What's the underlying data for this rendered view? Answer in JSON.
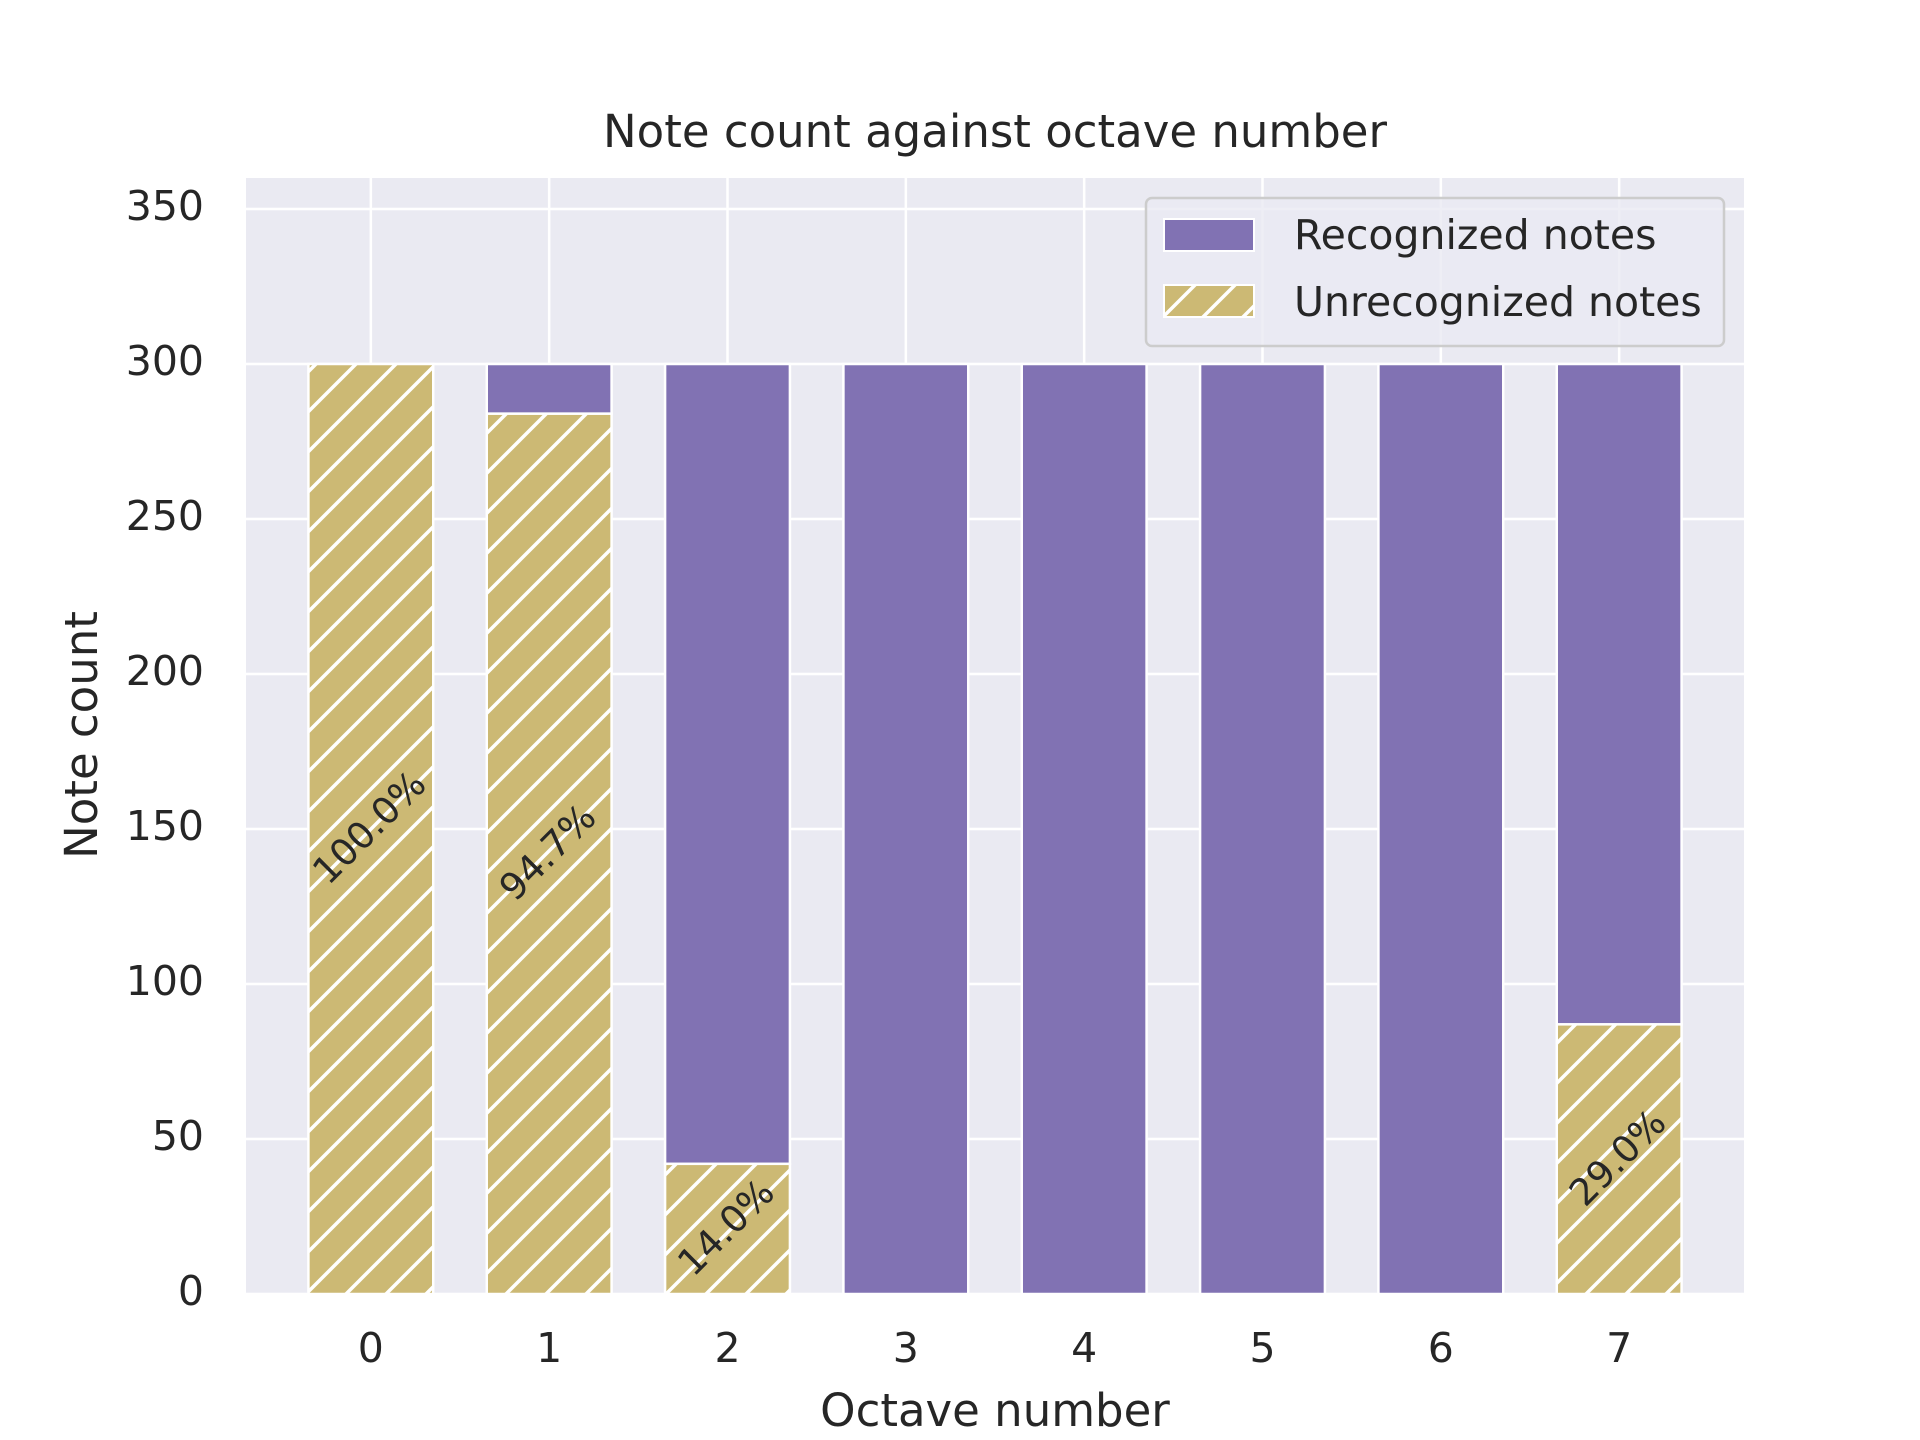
{
  "chart_data": {
    "type": "bar",
    "stacked": true,
    "title": "Note count against octave number",
    "xlabel": "Octave number",
    "ylabel": "Note count",
    "categories": [
      "0",
      "1",
      "2",
      "3",
      "4",
      "5",
      "6",
      "7"
    ],
    "ylim": [
      0,
      360
    ],
    "yticks": [
      0,
      50,
      100,
      150,
      200,
      250,
      300,
      350
    ],
    "grid": true,
    "legend_position": "top-right",
    "series": [
      {
        "name": "Unrecognized notes",
        "values": [
          300,
          284,
          42,
          0,
          0,
          0,
          0,
          87
        ],
        "color": "#ccb974",
        "hatch": "/"
      },
      {
        "name": "Recognized notes",
        "values": [
          0,
          16,
          258,
          300,
          300,
          300,
          300,
          213
        ],
        "color": "#8172b3"
      }
    ],
    "annotations": [
      "100.0%",
      "94.7%",
      "14.0%",
      "",
      "",
      "",
      "",
      "29.0%"
    ]
  },
  "colors": {
    "plot_background": "#eaeaf2",
    "grid": "#ffffff",
    "text": "#262626"
  }
}
